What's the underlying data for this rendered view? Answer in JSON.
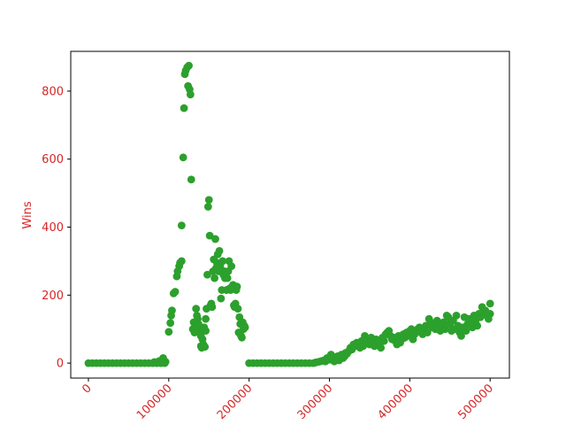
{
  "chart_data": {
    "type": "scatter",
    "title": "",
    "xlabel": "",
    "ylabel": "Wins",
    "xlim": [
      -22000,
      524000
    ],
    "ylim": [
      -44,
      917
    ],
    "grid": false,
    "x_ticks": [
      0,
      100000,
      200000,
      300000,
      400000,
      500000
    ],
    "x_tick_labels": [
      "0",
      "100000",
      "200000",
      "300000",
      "400000",
      "500000"
    ],
    "x_tick_rotation": 45,
    "y_ticks": [
      0,
      200,
      400,
      600,
      800
    ],
    "y_tick_labels": [
      "0",
      "200",
      "400",
      "600",
      "800"
    ],
    "tick_label_color": "#d62728",
    "axis_label_color": "#d62728",
    "marker_color": "#2ca02c",
    "series": [
      {
        "points": [
          [
            0,
            0
          ],
          [
            5000,
            0
          ],
          [
            10000,
            0
          ],
          [
            15000,
            0
          ],
          [
            20000,
            0
          ],
          [
            25000,
            0
          ],
          [
            30000,
            0
          ],
          [
            35000,
            0
          ],
          [
            40000,
            0
          ],
          [
            45000,
            0
          ],
          [
            50000,
            0
          ],
          [
            55000,
            0
          ],
          [
            60000,
            0
          ],
          [
            65000,
            0
          ],
          [
            70000,
            0
          ],
          [
            75000,
            0
          ],
          [
            80000,
            0
          ],
          [
            85000,
            0
          ],
          [
            90000,
            0
          ],
          [
            95000,
            0
          ],
          [
            82000,
            3
          ],
          [
            88000,
            6
          ],
          [
            93000,
            15
          ],
          [
            96000,
            4
          ],
          [
            100000,
            92
          ],
          [
            102000,
            118
          ],
          [
            103000,
            140
          ],
          [
            104000,
            155
          ],
          [
            106000,
            205
          ],
          [
            108000,
            210
          ],
          [
            110000,
            255
          ],
          [
            111000,
            270
          ],
          [
            113000,
            285
          ],
          [
            114000,
            295
          ],
          [
            116000,
            300
          ],
          [
            116000,
            405
          ],
          [
            118000,
            605
          ],
          [
            119000,
            750
          ],
          [
            120000,
            850
          ],
          [
            121000,
            860
          ],
          [
            123000,
            870
          ],
          [
            124000,
            815
          ],
          [
            125000,
            875
          ],
          [
            126000,
            805
          ],
          [
            127000,
            790
          ],
          [
            128000,
            540
          ],
          [
            130000,
            100
          ],
          [
            131000,
            120
          ],
          [
            132000,
            90
          ],
          [
            133000,
            110
          ],
          [
            134000,
            160
          ],
          [
            135000,
            140
          ],
          [
            136000,
            130
          ],
          [
            137000,
            115
          ],
          [
            138000,
            95
          ],
          [
            139000,
            100
          ],
          [
            140000,
            80
          ],
          [
            140000,
            50
          ],
          [
            141000,
            45
          ],
          [
            142000,
            70
          ],
          [
            143000,
            55
          ],
          [
            144000,
            105
          ],
          [
            145000,
            48
          ],
          [
            146000,
            95
          ],
          [
            146000,
            130
          ],
          [
            147000,
            160
          ],
          [
            148000,
            260
          ],
          [
            149000,
            460
          ],
          [
            150000,
            480
          ],
          [
            151000,
            375
          ],
          [
            152000,
            170
          ],
          [
            153000,
            175
          ],
          [
            154000,
            165
          ],
          [
            155000,
            270
          ],
          [
            156000,
            305
          ],
          [
            157000,
            250
          ],
          [
            158000,
            365
          ],
          [
            159000,
            280
          ],
          [
            160000,
            295
          ],
          [
            161000,
            320
          ],
          [
            162000,
            270
          ],
          [
            163000,
            330
          ],
          [
            164000,
            285
          ],
          [
            165000,
            190
          ],
          [
            166000,
            215
          ],
          [
            167000,
            300
          ],
          [
            168000,
            260
          ],
          [
            169000,
            270
          ],
          [
            170000,
            250
          ],
          [
            171000,
            255
          ],
          [
            172000,
            215
          ],
          [
            173000,
            250
          ],
          [
            174000,
            270
          ],
          [
            175000,
            300
          ],
          [
            176000,
            220
          ],
          [
            177000,
            215
          ],
          [
            178000,
            285
          ],
          [
            179000,
            225
          ],
          [
            180000,
            230
          ],
          [
            181000,
            170
          ],
          [
            182000,
            165
          ],
          [
            183000,
            175
          ],
          [
            184000,
            215
          ],
          [
            185000,
            225
          ],
          [
            186000,
            160
          ],
          [
            187000,
            90
          ],
          [
            188000,
            135
          ],
          [
            189000,
            115
          ],
          [
            190000,
            80
          ],
          [
            191000,
            75
          ],
          [
            192000,
            120
          ],
          [
            193000,
            100
          ],
          [
            194000,
            110
          ],
          [
            195000,
            105
          ],
          [
            200000,
            0
          ],
          [
            205000,
            0
          ],
          [
            210000,
            0
          ],
          [
            215000,
            0
          ],
          [
            220000,
            0
          ],
          [
            225000,
            0
          ],
          [
            230000,
            0
          ],
          [
            235000,
            0
          ],
          [
            240000,
            0
          ],
          [
            245000,
            0
          ],
          [
            250000,
            0
          ],
          [
            255000,
            0
          ],
          [
            260000,
            0
          ],
          [
            265000,
            0
          ],
          [
            270000,
            0
          ],
          [
            275000,
            0
          ],
          [
            280000,
            0
          ],
          [
            283000,
            2
          ],
          [
            287000,
            4
          ],
          [
            290000,
            6
          ],
          [
            293000,
            8
          ],
          [
            295000,
            5
          ],
          [
            297000,
            15
          ],
          [
            300000,
            10
          ],
          [
            301000,
            20
          ],
          [
            302000,
            25
          ],
          [
            304000,
            15
          ],
          [
            306000,
            5
          ],
          [
            308000,
            12
          ],
          [
            310000,
            20
          ],
          [
            312000,
            8
          ],
          [
            315000,
            25
          ],
          [
            317000,
            15
          ],
          [
            319000,
            20
          ],
          [
            320000,
            30
          ],
          [
            322000,
            28
          ],
          [
            324000,
            35
          ],
          [
            326000,
            45
          ],
          [
            328000,
            40
          ],
          [
            330000,
            55
          ],
          [
            332000,
            50
          ],
          [
            334000,
            60
          ],
          [
            336000,
            55
          ],
          [
            338000,
            45
          ],
          [
            340000,
            65
          ],
          [
            342000,
            50
          ],
          [
            344000,
            80
          ],
          [
            346000,
            60
          ],
          [
            348000,
            70
          ],
          [
            350000,
            55
          ],
          [
            352000,
            75
          ],
          [
            354000,
            65
          ],
          [
            356000,
            50
          ],
          [
            358000,
            70
          ],
          [
            360000,
            60
          ],
          [
            362000,
            55
          ],
          [
            364000,
            45
          ],
          [
            366000,
            75
          ],
          [
            368000,
            65
          ],
          [
            370000,
            85
          ],
          [
            372000,
            90
          ],
          [
            374000,
            95
          ],
          [
            376000,
            80
          ],
          [
            378000,
            70
          ],
          [
            380000,
            75
          ],
          [
            382000,
            65
          ],
          [
            384000,
            55
          ],
          [
            386000,
            80
          ],
          [
            388000,
            60
          ],
          [
            390000,
            70
          ],
          [
            392000,
            85
          ],
          [
            394000,
            75
          ],
          [
            396000,
            90
          ],
          [
            398000,
            80
          ],
          [
            400000,
            95
          ],
          [
            402000,
            100
          ],
          [
            404000,
            70
          ],
          [
            406000,
            85
          ],
          [
            408000,
            90
          ],
          [
            410000,
            100
          ],
          [
            412000,
            105
          ],
          [
            414000,
            95
          ],
          [
            416000,
            85
          ],
          [
            418000,
            100
          ],
          [
            420000,
            110
          ],
          [
            422000,
            90
          ],
          [
            424000,
            130
          ],
          [
            426000,
            120
          ],
          [
            428000,
            105
          ],
          [
            430000,
            115
          ],
          [
            432000,
            100
          ],
          [
            434000,
            125
          ],
          [
            436000,
            110
          ],
          [
            438000,
            95
          ],
          [
            440000,
            105
          ],
          [
            442000,
            120
          ],
          [
            444000,
            100
          ],
          [
            446000,
            140
          ],
          [
            448000,
            135
          ],
          [
            450000,
            115
          ],
          [
            452000,
            95
          ],
          [
            454000,
            125
          ],
          [
            456000,
            100
          ],
          [
            458000,
            140
          ],
          [
            460000,
            110
          ],
          [
            462000,
            90
          ],
          [
            464000,
            80
          ],
          [
            466000,
            105
          ],
          [
            468000,
            135
          ],
          [
            470000,
            95
          ],
          [
            472000,
            115
          ],
          [
            474000,
            130
          ],
          [
            476000,
            120
          ],
          [
            478000,
            105
          ],
          [
            480000,
            140
          ],
          [
            482000,
            125
          ],
          [
            484000,
            110
          ],
          [
            486000,
            145
          ],
          [
            488000,
            135
          ],
          [
            490000,
            165
          ],
          [
            492000,
            150
          ],
          [
            494000,
            155
          ],
          [
            496000,
            140
          ],
          [
            498000,
            130
          ],
          [
            500000,
            145
          ],
          [
            500000,
            175
          ]
        ]
      }
    ]
  }
}
